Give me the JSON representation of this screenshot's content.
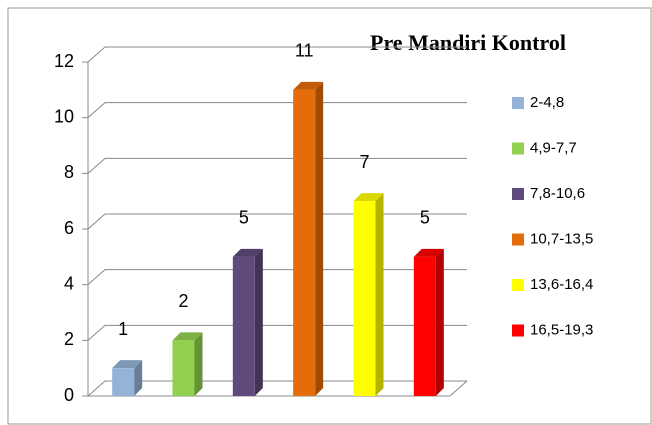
{
  "chart_data": {
    "type": "bar",
    "title": "Pre Mandiri Kontrol",
    "categories": [
      null
    ],
    "series": [
      {
        "name": "2-4,8",
        "color": "#95b3d7",
        "values": [
          1
        ]
      },
      {
        "name": "4,9-7,7",
        "color": "#92d050",
        "values": [
          2
        ]
      },
      {
        "name": "7,8-10,6",
        "color": "#604a7b",
        "values": [
          5
        ]
      },
      {
        "name": "10,7-13,5",
        "color": "#e46c0a",
        "values": [
          11
        ]
      },
      {
        "name": "13,6-16,4",
        "color": "#ffff00",
        "values": [
          7
        ]
      },
      {
        "name": "16,5-19,3",
        "color": "#ff0000",
        "values": [
          5
        ]
      }
    ],
    "ylim": [
      0,
      12
    ],
    "yticks": [
      0,
      2,
      4,
      6,
      8,
      10,
      12
    ],
    "grid": true,
    "legend": "right"
  }
}
